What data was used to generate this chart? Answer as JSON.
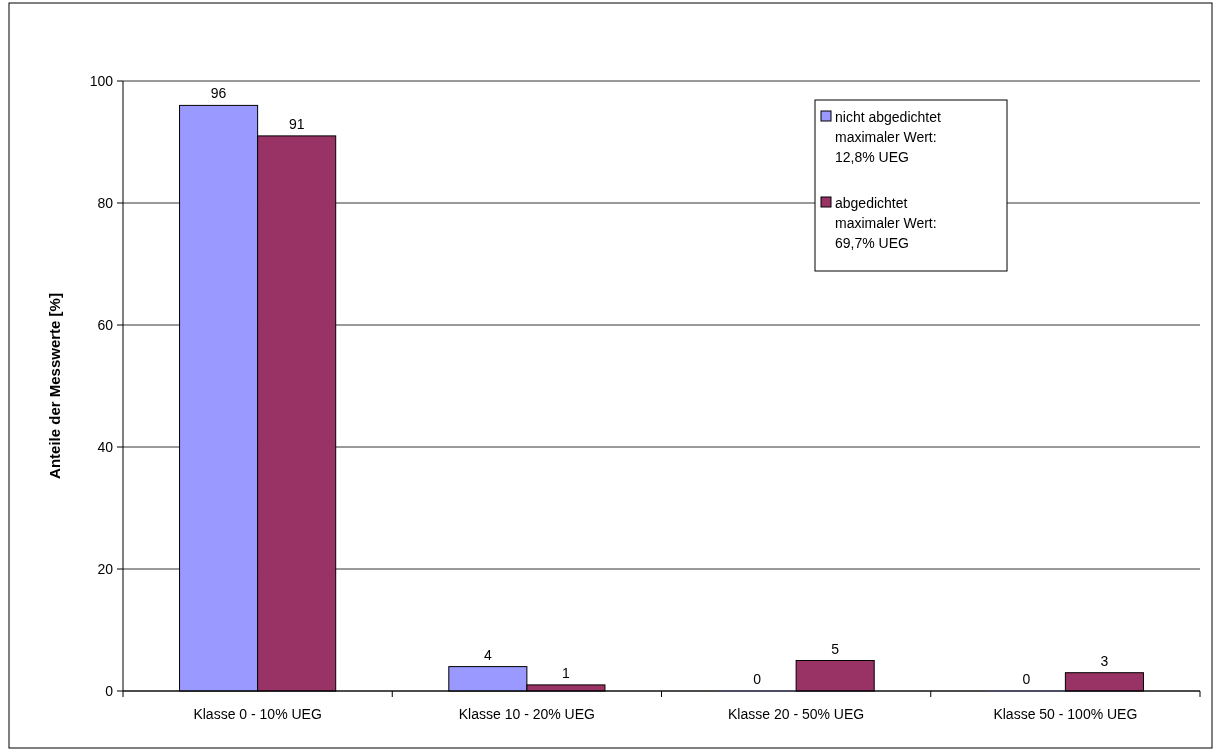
{
  "chart_data": {
    "type": "bar",
    "ylabel": "Anteile der Messwerte [%]",
    "categories": [
      "Klasse 0 - 10% UEG",
      "Klasse 10 - 20% UEG",
      "Klasse 20 - 50% UEG",
      "Klasse 50 - 100% UEG"
    ],
    "series": [
      {
        "name": "nicht abgedichtet\nmaximaler Wert:\n12,8% UEG",
        "color": "#9999ff",
        "values": [
          96,
          4,
          0,
          0
        ]
      },
      {
        "name": "abgedichtet\nmaximaler Wert:\n69,7% UEG",
        "color": "#993366",
        "values": [
          91,
          1,
          5,
          3
        ]
      }
    ],
    "ylim": [
      0,
      100
    ],
    "yticks": [
      0,
      20,
      40,
      60,
      80,
      100
    ],
    "grid": "y",
    "legend": "top right",
    "data_labels": true
  }
}
